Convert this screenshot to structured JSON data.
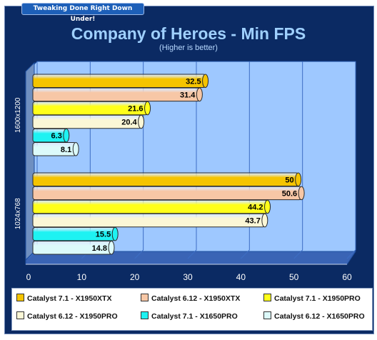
{
  "banner": {
    "text": "Tweaking Done Right Down Under!"
  },
  "chart_data": {
    "type": "bar",
    "orientation": "horizontal",
    "title": "Company of Heroes - Min FPS",
    "subtitle": "(Higher is better)",
    "categories": [
      "1600x1200",
      "1024x768"
    ],
    "xlim": [
      0,
      60
    ],
    "xticks": [
      "0",
      "10",
      "20",
      "30",
      "40",
      "50",
      "60"
    ],
    "grid": true,
    "legend_position": "bottom",
    "series": [
      {
        "name": "Catalyst 7.1 - X1950XTX",
        "color": "#f5c400",
        "values": [
          32.5,
          50
        ]
      },
      {
        "name": "Catalyst 6.12 - X1950XTX",
        "color": "#f7c7a6",
        "values": [
          31.4,
          50.6
        ]
      },
      {
        "name": "Catalyst 7.1 - X1950PRO",
        "color": "#ffff1a",
        "values": [
          21.6,
          44.2
        ]
      },
      {
        "name": "Catalyst 6.12 - X1950PRO",
        "color": "#fbf7d6",
        "values": [
          20.4,
          43.7
        ]
      },
      {
        "name": "Catalyst 7.1 - X1650PRO",
        "color": "#1ef2f2",
        "values": [
          6.3,
          15.5
        ]
      },
      {
        "name": "Catalyst 6.12 - X1650PRO",
        "color": "#dcfafa",
        "values": [
          8.1,
          14.8
        ]
      }
    ]
  }
}
